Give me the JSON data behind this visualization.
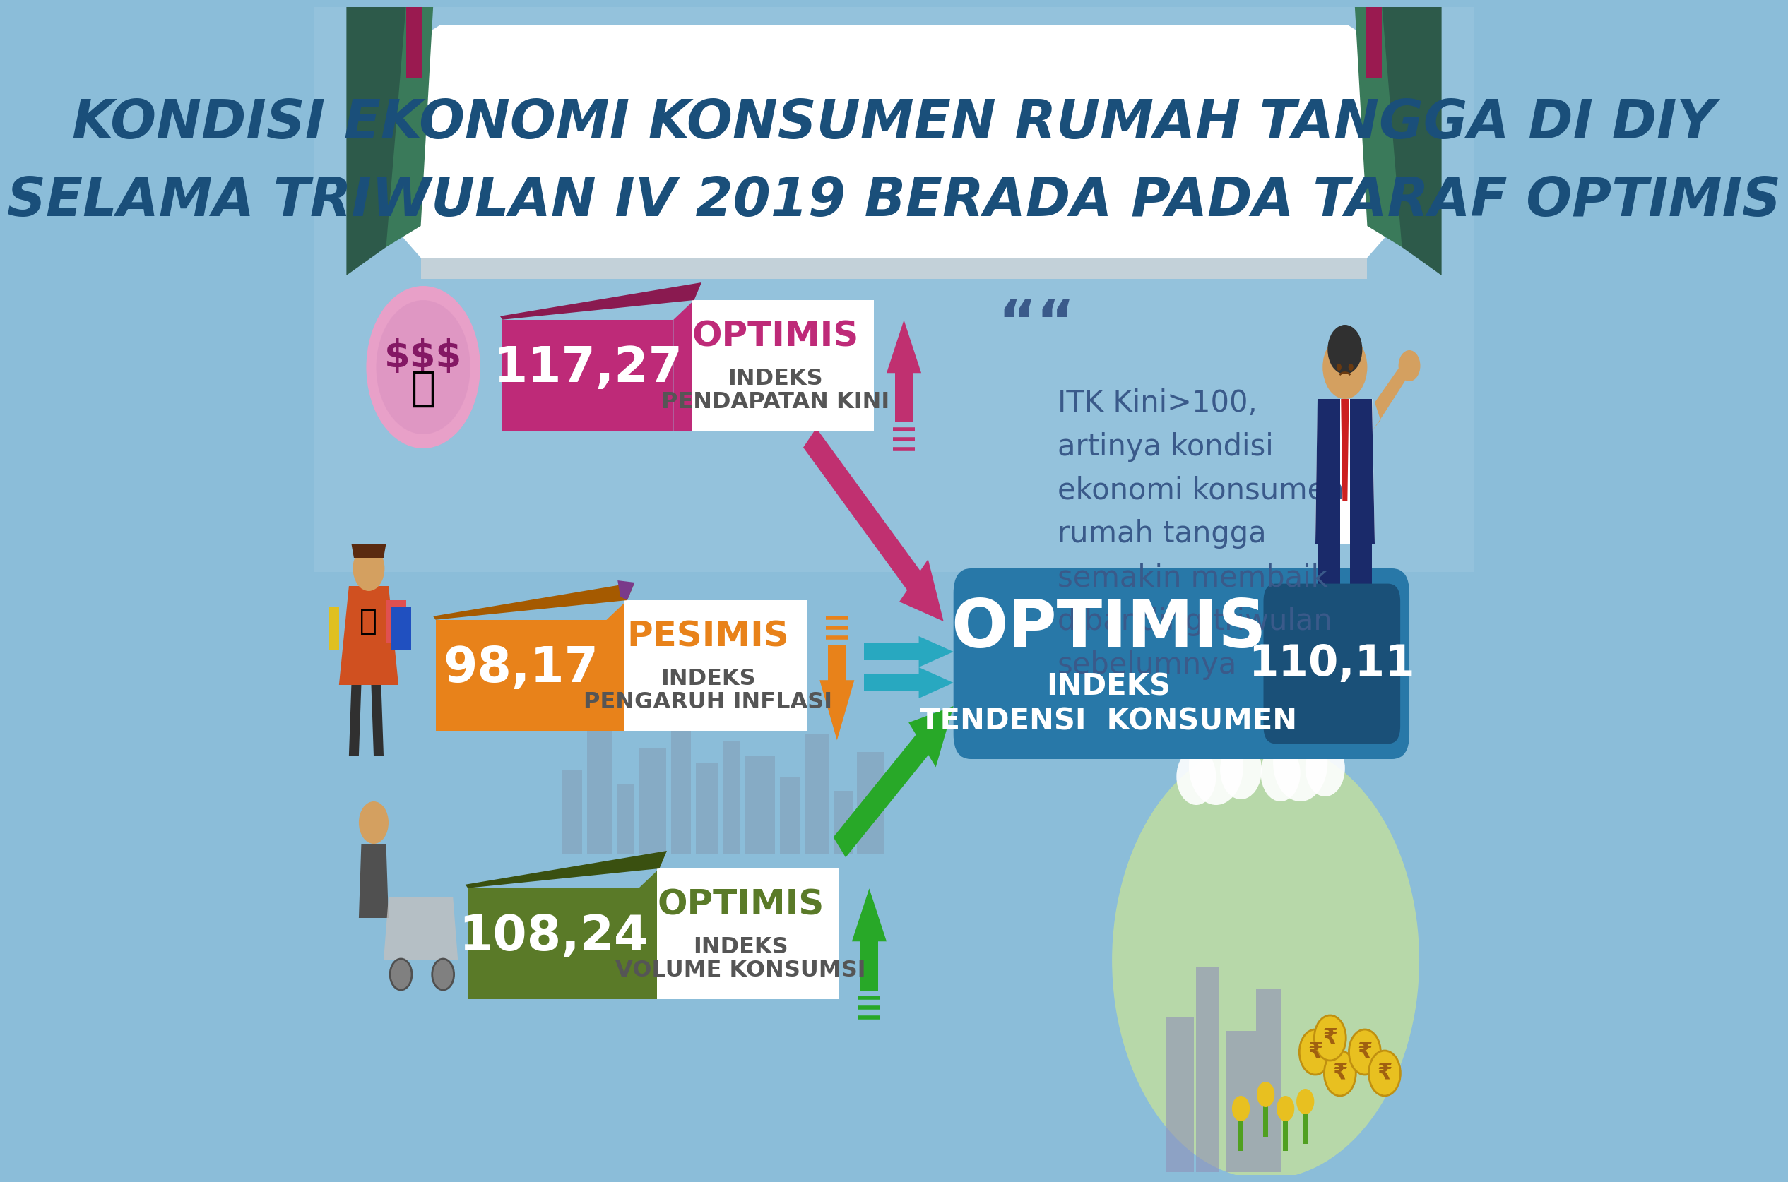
{
  "bg_top": "#a8c8e8",
  "bg_bottom": "#7ab4d4",
  "title_line1": "KONDISI EKONOMI KONSUMEN RUMAH TANGGA DI DIY",
  "title_line2": "SELAMA TRIWULAN IV 2019 BERADA PADA TARAF OPTIMIS",
  "title_color": "#1a4f7a",
  "card1_value": "117,27",
  "card1_status": "OPTIMIS",
  "card1_label1": "INDEKS",
  "card1_label2": "PENDAPATAN KINI",
  "card1_bg": "#be2a78",
  "card1_fold": "#8a1a50",
  "card2_value": "98,17",
  "card2_status": "PESIMIS",
  "card2_label1": "INDEKS",
  "card2_label2": "PENGARUH INFLASI",
  "card2_bg": "#e8821a",
  "card2_fold": "#a55a00",
  "card2_fold2": "#7a3a8a",
  "card3_value": "108,24",
  "card3_status": "OPTIMIS",
  "card3_label1": "INDEKS",
  "card3_label2": "VOLUME KONSUMSI",
  "card3_bg": "#5a7a28",
  "card3_fold": "#3a5010",
  "result_value": "110,11",
  "result_status": "OPTIMIS",
  "result_label1": "INDEKS",
  "result_label2": "TENDENSI  KONSUMEN",
  "result_bg": "#2878a8",
  "result_val_bg": "#1a5078",
  "quote_text": "ITK Kini>100,\nartinya kondisi\nekonomi konsumen\nrumah tangga\nsemakin membaik\ndibanding triwulan\nsebelumnya",
  "quote_color": "#3a5a8a",
  "pillar_dark": "#2d5a4a",
  "pillar_mid": "#3a7a5a",
  "pink_accent": "#9a1a50",
  "arrow_pink": "#c03070",
  "arrow_teal": "#28a8c0",
  "arrow_green": "#28a828",
  "icon_circle1": "#e8a0c8",
  "city_color": "#7090a8"
}
